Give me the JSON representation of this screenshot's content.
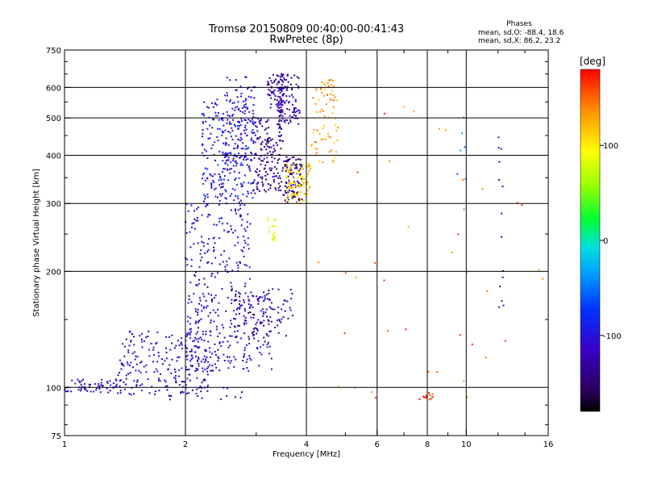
{
  "chart_data": {
    "type": "scatter",
    "title": "Tromsø 20150809 00:40:00-00:41:43",
    "subtitle": "RwPretec (8p)",
    "xlabel": "Frequency [MHz]",
    "ylabel": "Stationary phase Virtual Height [km]",
    "x_scale": "log",
    "y_scale": "log",
    "xlim": [
      1,
      16
    ],
    "ylim": [
      75,
      750
    ],
    "x_ticks": [
      1,
      2,
      4,
      6,
      8,
      10,
      16
    ],
    "x_tick_labels": [
      "1",
      "2",
      "4",
      "6",
      "8",
      "10",
      "16"
    ],
    "x_minor_ticks": [
      3,
      5,
      7,
      9,
      12,
      14
    ],
    "y_ticks": [
      75,
      100,
      200,
      300,
      400,
      500,
      600,
      750
    ],
    "y_tick_labels": [
      "75",
      "100",
      "200",
      "300",
      "400",
      "500",
      "600",
      "750"
    ],
    "y_minor_ticks": [
      80,
      90,
      150,
      250,
      350,
      450,
      550,
      650,
      700
    ],
    "grid": true,
    "colorbar": {
      "label": "[deg]",
      "range": [
        -180,
        180
      ],
      "ticks": [
        100,
        0,
        -100
      ],
      "tick_labels": [
        "100",
        "0",
        "-100"
      ]
    },
    "stats_title": "Phases",
    "stats": [
      "mean, sd,O: -88.4, 18.6",
      "mean, sd,X:  86.2, 23.2"
    ],
    "clusters": [
      {
        "f": [
          1.0,
          1.35
        ],
        "h": [
          97,
          105
        ],
        "phase": -110,
        "n": 60
      },
      {
        "f": [
          1.35,
          2.3
        ],
        "h": [
          95,
          140
        ],
        "phase": -115,
        "n": 210
      },
      {
        "f": [
          2.0,
          3.3
        ],
        "h": [
          110,
          175
        ],
        "phase": -110,
        "n": 260
      },
      {
        "f": [
          2.6,
          3.7
        ],
        "h": [
          135,
          180
        ],
        "phase": -125,
        "n": 90
      },
      {
        "f": [
          2.0,
          2.9
        ],
        "h": [
          180,
          300
        ],
        "phase": -108,
        "n": 150
      },
      {
        "f": [
          2.2,
          3.0
        ],
        "h": [
          300,
          560
        ],
        "phase": -95,
        "n": 280
      },
      {
        "f": [
          2.5,
          3.0
        ],
        "h": [
          360,
          640
        ],
        "phase": -110,
        "n": 90
      },
      {
        "f": [
          3.0,
          3.5
        ],
        "h": [
          320,
          500
        ],
        "phase": -135,
        "n": 150
      },
      {
        "f": [
          3.2,
          3.5
        ],
        "h": [
          520,
          650
        ],
        "phase": -130,
        "n": 70
      },
      {
        "f": [
          3.4,
          3.85
        ],
        "h": [
          480,
          650
        ],
        "phase": -125,
        "n": 110
      },
      {
        "f": [
          3.5,
          3.9
        ],
        "h": [
          300,
          400
        ],
        "phase": -145,
        "n": 100
      },
      {
        "f": [
          3.55,
          4.1
        ],
        "h": [
          300,
          380
        ],
        "phase": 110,
        "n": 90
      },
      {
        "f": [
          3.2,
          3.35
        ],
        "h": [
          240,
          275
        ],
        "phase": 90,
        "n": 18
      },
      {
        "f": [
          4.1,
          4.8
        ],
        "h": [
          380,
          620
        ],
        "phase": 130,
        "n": 60
      },
      {
        "f": [
          4.4,
          4.7
        ],
        "h": [
          570,
          640
        ],
        "phase": 150,
        "n": 12
      },
      {
        "f": [
          1.8,
          2.8
        ],
        "h": [
          93,
          100
        ],
        "phase": -110,
        "n": 18
      },
      {
        "f": [
          7.6,
          8.3
        ],
        "h": [
          93,
          98
        ],
        "phase": 170,
        "n": 12
      },
      {
        "f": [
          4.0,
          15.5
        ],
        "h": [
          90,
          600
        ],
        "phase": 150,
        "n": 40
      },
      {
        "f": [
          12.0,
          12.4
        ],
        "h": [
          150,
          460
        ],
        "phase": -125,
        "n": 14
      },
      {
        "f": [
          9.5,
          10.0
        ],
        "h": [
          320,
          540
        ],
        "phase": -40,
        "n": 6
      }
    ]
  }
}
